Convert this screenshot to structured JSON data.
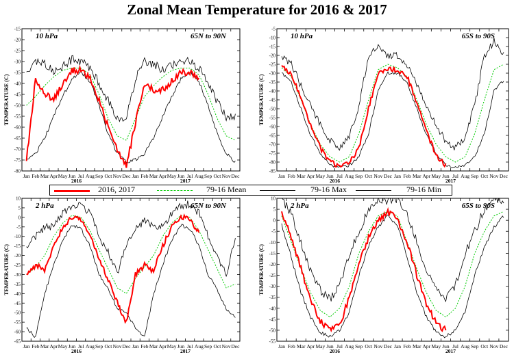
{
  "title": "Zonal Mean Temperature for 2016 & 2017",
  "legend": [
    {
      "label": "2016, 2017",
      "color": "#ff0000",
      "style": "solid"
    },
    {
      "label": "79-16 Mean",
      "color": "#00cc00",
      "style": "dotted"
    },
    {
      "label": "79-16 Max",
      "color": "#000000",
      "style": "solid"
    },
    {
      "label": "79-16 Min",
      "color": "#000000",
      "style": "solid"
    }
  ],
  "chart_data": [
    {
      "type": "line",
      "level": "10 hPa",
      "region": "65N to 90N",
      "ylabel": "TEMPERATURE (C)",
      "ylim": [
        -80,
        -15
      ],
      "yticks": [
        -80,
        -75,
        -70,
        -65,
        -60,
        -55,
        -50,
        -45,
        -40,
        -35,
        -30,
        -25,
        -20,
        -15
      ],
      "months": [
        "Jan",
        "Feb",
        "Mar",
        "Apr",
        "May",
        "Jun",
        "Jul",
        "Aug",
        "Sep",
        "Oct",
        "Nov",
        "Dec",
        "Jan",
        "Feb",
        "Mar",
        "Apr",
        "May",
        "Jun",
        "Jul",
        "Aug",
        "Sep",
        "Oct",
        "Nov",
        "Dec"
      ],
      "years": [
        "2016",
        "2017"
      ],
      "mean": [
        -50,
        -46,
        -41,
        -37,
        -34,
        -33,
        -33,
        -36,
        -45,
        -56,
        -64,
        -66,
        -56,
        -46,
        -41,
        -37,
        -34,
        -33,
        -33,
        -36,
        -45,
        -56,
        -64,
        -66
      ],
      "max": [
        -35,
        -30,
        -31,
        -34,
        -32,
        -29,
        -30,
        -33,
        -40,
        -48,
        -56,
        -55,
        -38,
        -30,
        -31,
        -34,
        -32,
        -29,
        -30,
        -33,
        -40,
        -48,
        -56,
        -55
      ],
      "min": [
        -75,
        -72,
        -65,
        -55,
        -46,
        -38,
        -35,
        -39,
        -50,
        -63,
        -72,
        -76,
        -75,
        -72,
        -65,
        -55,
        -46,
        -38,
        -35,
        -39,
        -50,
        -63,
        -72,
        -76
      ],
      "obs": [
        -75,
        -38,
        -45,
        -47,
        -40,
        -34,
        -34,
        -38,
        -48,
        -60,
        -70,
        -78,
        -58,
        -40,
        -43,
        -43,
        -39,
        -35,
        -35,
        -37,
        null,
        null,
        null,
        null
      ]
    },
    {
      "type": "line",
      "level": "10 hPa",
      "region": "65S to 90S",
      "ylabel": "TEMPERATURE (C)",
      "ylim": [
        -85,
        -5
      ],
      "yticks": [
        -85,
        -80,
        -75,
        -70,
        -65,
        -60,
        -55,
        -50,
        -45,
        -40,
        -35,
        -30,
        -25,
        -20,
        -15,
        -10,
        -5
      ],
      "months": [
        "Jan",
        "Feb",
        "Mar",
        "Apr",
        "May",
        "Jun",
        "Jul",
        "Aug",
        "Sep",
        "Oct",
        "Nov",
        "Dec",
        "Jan",
        "Feb",
        "Mar",
        "Apr",
        "May",
        "Jun",
        "Jul",
        "Aug",
        "Sep",
        "Oct",
        "Nov",
        "Dec"
      ],
      "years": [
        "2016",
        "2017"
      ],
      "mean": [
        -27,
        -32,
        -45,
        -59,
        -70,
        -77,
        -80,
        -77,
        -64,
        -45,
        -28,
        -25,
        -27,
        -32,
        -45,
        -59,
        -70,
        -77,
        -80,
        -77,
        -64,
        -45,
        -28,
        -25
      ],
      "max": [
        -20,
        -25,
        -37,
        -49,
        -59,
        -68,
        -72,
        -66,
        -48,
        -20,
        -15,
        -20,
        -20,
        -25,
        -37,
        -49,
        -59,
        -68,
        -72,
        -66,
        -48,
        -20,
        -12,
        -20
      ],
      "min": [
        -30,
        -35,
        -50,
        -65,
        -75,
        -82,
        -83,
        -82,
        -77,
        -64,
        -40,
        -30,
        -30,
        -35,
        -50,
        -65,
        -75,
        -82,
        -83,
        -82,
        -77,
        -64,
        -40,
        -34
      ],
      "obs": [
        -26,
        -30,
        -45,
        -60,
        -72,
        -80,
        -82,
        -80,
        -72,
        -50,
        -30,
        -28,
        -28,
        -32,
        -47,
        -63,
        -76,
        -82,
        null,
        null,
        null,
        null,
        null,
        null
      ]
    },
    {
      "type": "line",
      "level": "2 hPa",
      "region": "65N to 90N",
      "ylabel": "TEMPERATURE (C)",
      "ylim": [
        -65,
        10
      ],
      "yticks": [
        -65,
        -60,
        -55,
        -50,
        -45,
        -40,
        -35,
        -30,
        -25,
        -20,
        -15,
        -10,
        -5,
        0,
        5,
        10
      ],
      "months": [
        "Jan",
        "Feb",
        "Mar",
        "Apr",
        "May",
        "Jun",
        "Jul",
        "Aug",
        "Sep",
        "Oct",
        "Nov",
        "Dec",
        "Jan",
        "Feb",
        "Mar",
        "Apr",
        "May",
        "Jun",
        "Jul",
        "Aug",
        "Sep",
        "Oct",
        "Nov",
        "Dec"
      ],
      "years": [
        "2016",
        "2017"
      ],
      "mean": [
        -30,
        -26,
        -20,
        -10,
        -3,
        1,
        0,
        -7,
        -17,
        -27,
        -37,
        -40,
        -32,
        -26,
        -20,
        -10,
        -3,
        1,
        0,
        -7,
        -17,
        -27,
        -37,
        -35
      ],
      "max": [
        -15,
        -10,
        -5,
        -5,
        2,
        6,
        7,
        2,
        -10,
        -18,
        -29,
        -15,
        -6,
        -2,
        -5,
        -5,
        2,
        6,
        7,
        2,
        -10,
        -20,
        -30,
        -10
      ],
      "min": [
        -58,
        -63,
        -40,
        -25,
        -12,
        -4,
        -6,
        -15,
        -30,
        -38,
        -48,
        -50,
        -58,
        -63,
        -40,
        -25,
        -12,
        -4,
        -6,
        -15,
        -30,
        -38,
        -48,
        -52
      ],
      "obs": [
        -30,
        -25,
        -28,
        -15,
        -5,
        0,
        -1,
        -10,
        -22,
        -33,
        -45,
        -55,
        -30,
        -25,
        -28,
        -15,
        -5,
        0,
        -1,
        -8,
        null,
        null,
        null,
        null
      ]
    },
    {
      "type": "line",
      "level": "2 hPa",
      "region": "65S to 90S",
      "ylabel": "TEMPERATURE (C)",
      "ylim": [
        -55,
        10
      ],
      "yticks": [
        -55,
        -50,
        -45,
        -40,
        -35,
        -30,
        -25,
        -20,
        -15,
        -10,
        -5,
        0,
        5,
        10
      ],
      "months": [
        "Jan",
        "Feb",
        "Mar",
        "Apr",
        "May",
        "Jun",
        "Jul",
        "Aug",
        "Sep",
        "Oct",
        "Nov",
        "Dec",
        "Jan",
        "Feb",
        "Mar",
        "Apr",
        "May",
        "Jun",
        "Jul",
        "Aug",
        "Sep",
        "Oct",
        "Nov",
        "Dec"
      ],
      "years": [
        "2016",
        "2017"
      ],
      "mean": [
        2,
        -10,
        -22,
        -33,
        -41,
        -44,
        -40,
        -30,
        -15,
        -5,
        2,
        4,
        2,
        -10,
        -22,
        -33,
        -41,
        -44,
        -40,
        -30,
        -15,
        -5,
        2,
        4
      ],
      "max": [
        10,
        3,
        -10,
        -23,
        -32,
        -36,
        -30,
        -15,
        -5,
        5,
        10,
        9,
        10,
        3,
        -10,
        -23,
        -32,
        -36,
        -30,
        -15,
        -5,
        5,
        10,
        9
      ],
      "min": [
        -2,
        -17,
        -33,
        -44,
        -51,
        -53,
        -50,
        -42,
        -25,
        -12,
        -3,
        2,
        -2,
        -17,
        -33,
        -44,
        -51,
        -53,
        -50,
        -42,
        -25,
        -12,
        -3,
        2
      ],
      "obs": [
        4,
        -8,
        -22,
        -36,
        -46,
        -50,
        -48,
        -35,
        -20,
        -8,
        0,
        4,
        0,
        -10,
        -25,
        -38,
        -47,
        -50,
        null,
        null,
        null,
        null,
        null,
        null
      ]
    }
  ]
}
